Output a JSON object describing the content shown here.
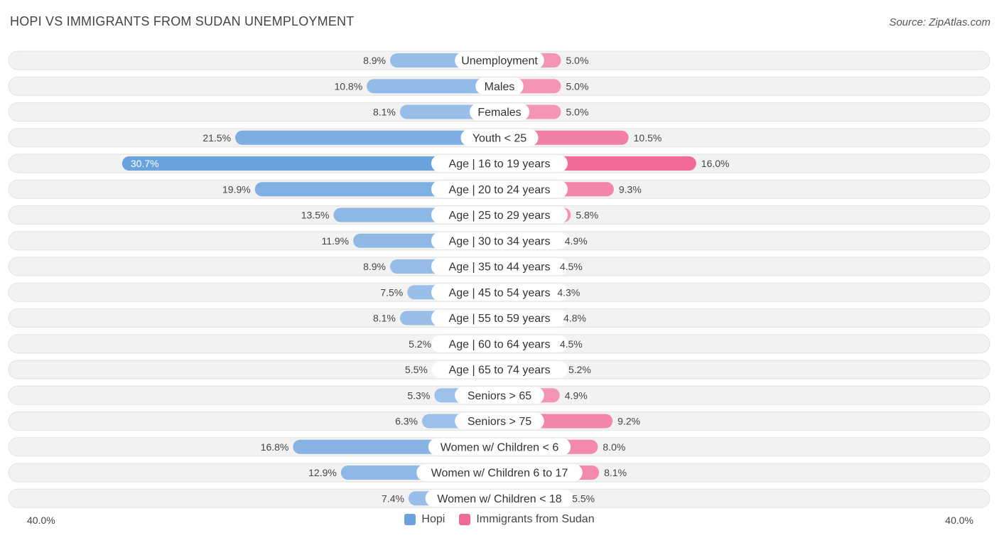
{
  "title": "HOPI VS IMMIGRANTS FROM SUDAN UNEMPLOYMENT",
  "source": "Source: ZipAtlas.com",
  "colors": {
    "hopi": "#6aa2dd",
    "hopi_light": "#a8c8ec",
    "sudan": "#f06b98",
    "sudan_light": "#f6a8c2",
    "row_bg": "#f1f1f1"
  },
  "chart_data": {
    "type": "bar",
    "orientation": "horizontal-diverging",
    "title": "HOPI VS IMMIGRANTS FROM SUDAN UNEMPLOYMENT",
    "categories": [
      "Unemployment",
      "Males",
      "Females",
      "Youth < 25",
      "Age | 16 to 19 years",
      "Age | 20 to 24 years",
      "Age | 25 to 29 years",
      "Age | 30 to 34 years",
      "Age | 35 to 44 years",
      "Age | 45 to 54 years",
      "Age | 55 to 59 years",
      "Age | 60 to 64 years",
      "Age | 65 to 74 years",
      "Seniors > 65",
      "Seniors > 75",
      "Women w/ Children < 6",
      "Women w/ Children 6 to 17",
      "Women w/ Children < 18"
    ],
    "series": [
      {
        "name": "Hopi",
        "values": [
          8.9,
          10.8,
          8.1,
          21.5,
          30.7,
          19.9,
          13.5,
          11.9,
          8.9,
          7.5,
          8.1,
          5.2,
          5.5,
          5.3,
          6.3,
          16.8,
          12.9,
          7.4
        ]
      },
      {
        "name": "Immigrants from Sudan",
        "values": [
          5.0,
          5.0,
          5.0,
          10.5,
          16.0,
          9.3,
          5.8,
          4.9,
          4.5,
          4.3,
          4.8,
          4.5,
          5.2,
          4.9,
          9.2,
          8.0,
          8.1,
          5.5
        ]
      }
    ],
    "value_labels": {
      "hopi": [
        "8.9%",
        "10.8%",
        "8.1%",
        "21.5%",
        "30.7%",
        "19.9%",
        "13.5%",
        "11.9%",
        "8.9%",
        "7.5%",
        "8.1%",
        "5.2%",
        "5.5%",
        "5.3%",
        "6.3%",
        "16.8%",
        "12.9%",
        "7.4%"
      ],
      "sudan": [
        "5.0%",
        "5.0%",
        "5.0%",
        "10.5%",
        "16.0%",
        "9.3%",
        "5.8%",
        "4.9%",
        "4.5%",
        "4.3%",
        "4.8%",
        "4.5%",
        "5.2%",
        "4.9%",
        "9.2%",
        "8.0%",
        "8.1%",
        "5.5%"
      ]
    },
    "xlim": [
      -40,
      40
    ],
    "axis_labels": {
      "left": "40.0%",
      "right": "40.0%"
    },
    "legend": [
      "Hopi",
      "Immigrants from Sudan"
    ],
    "legend_position": "bottom-center"
  }
}
